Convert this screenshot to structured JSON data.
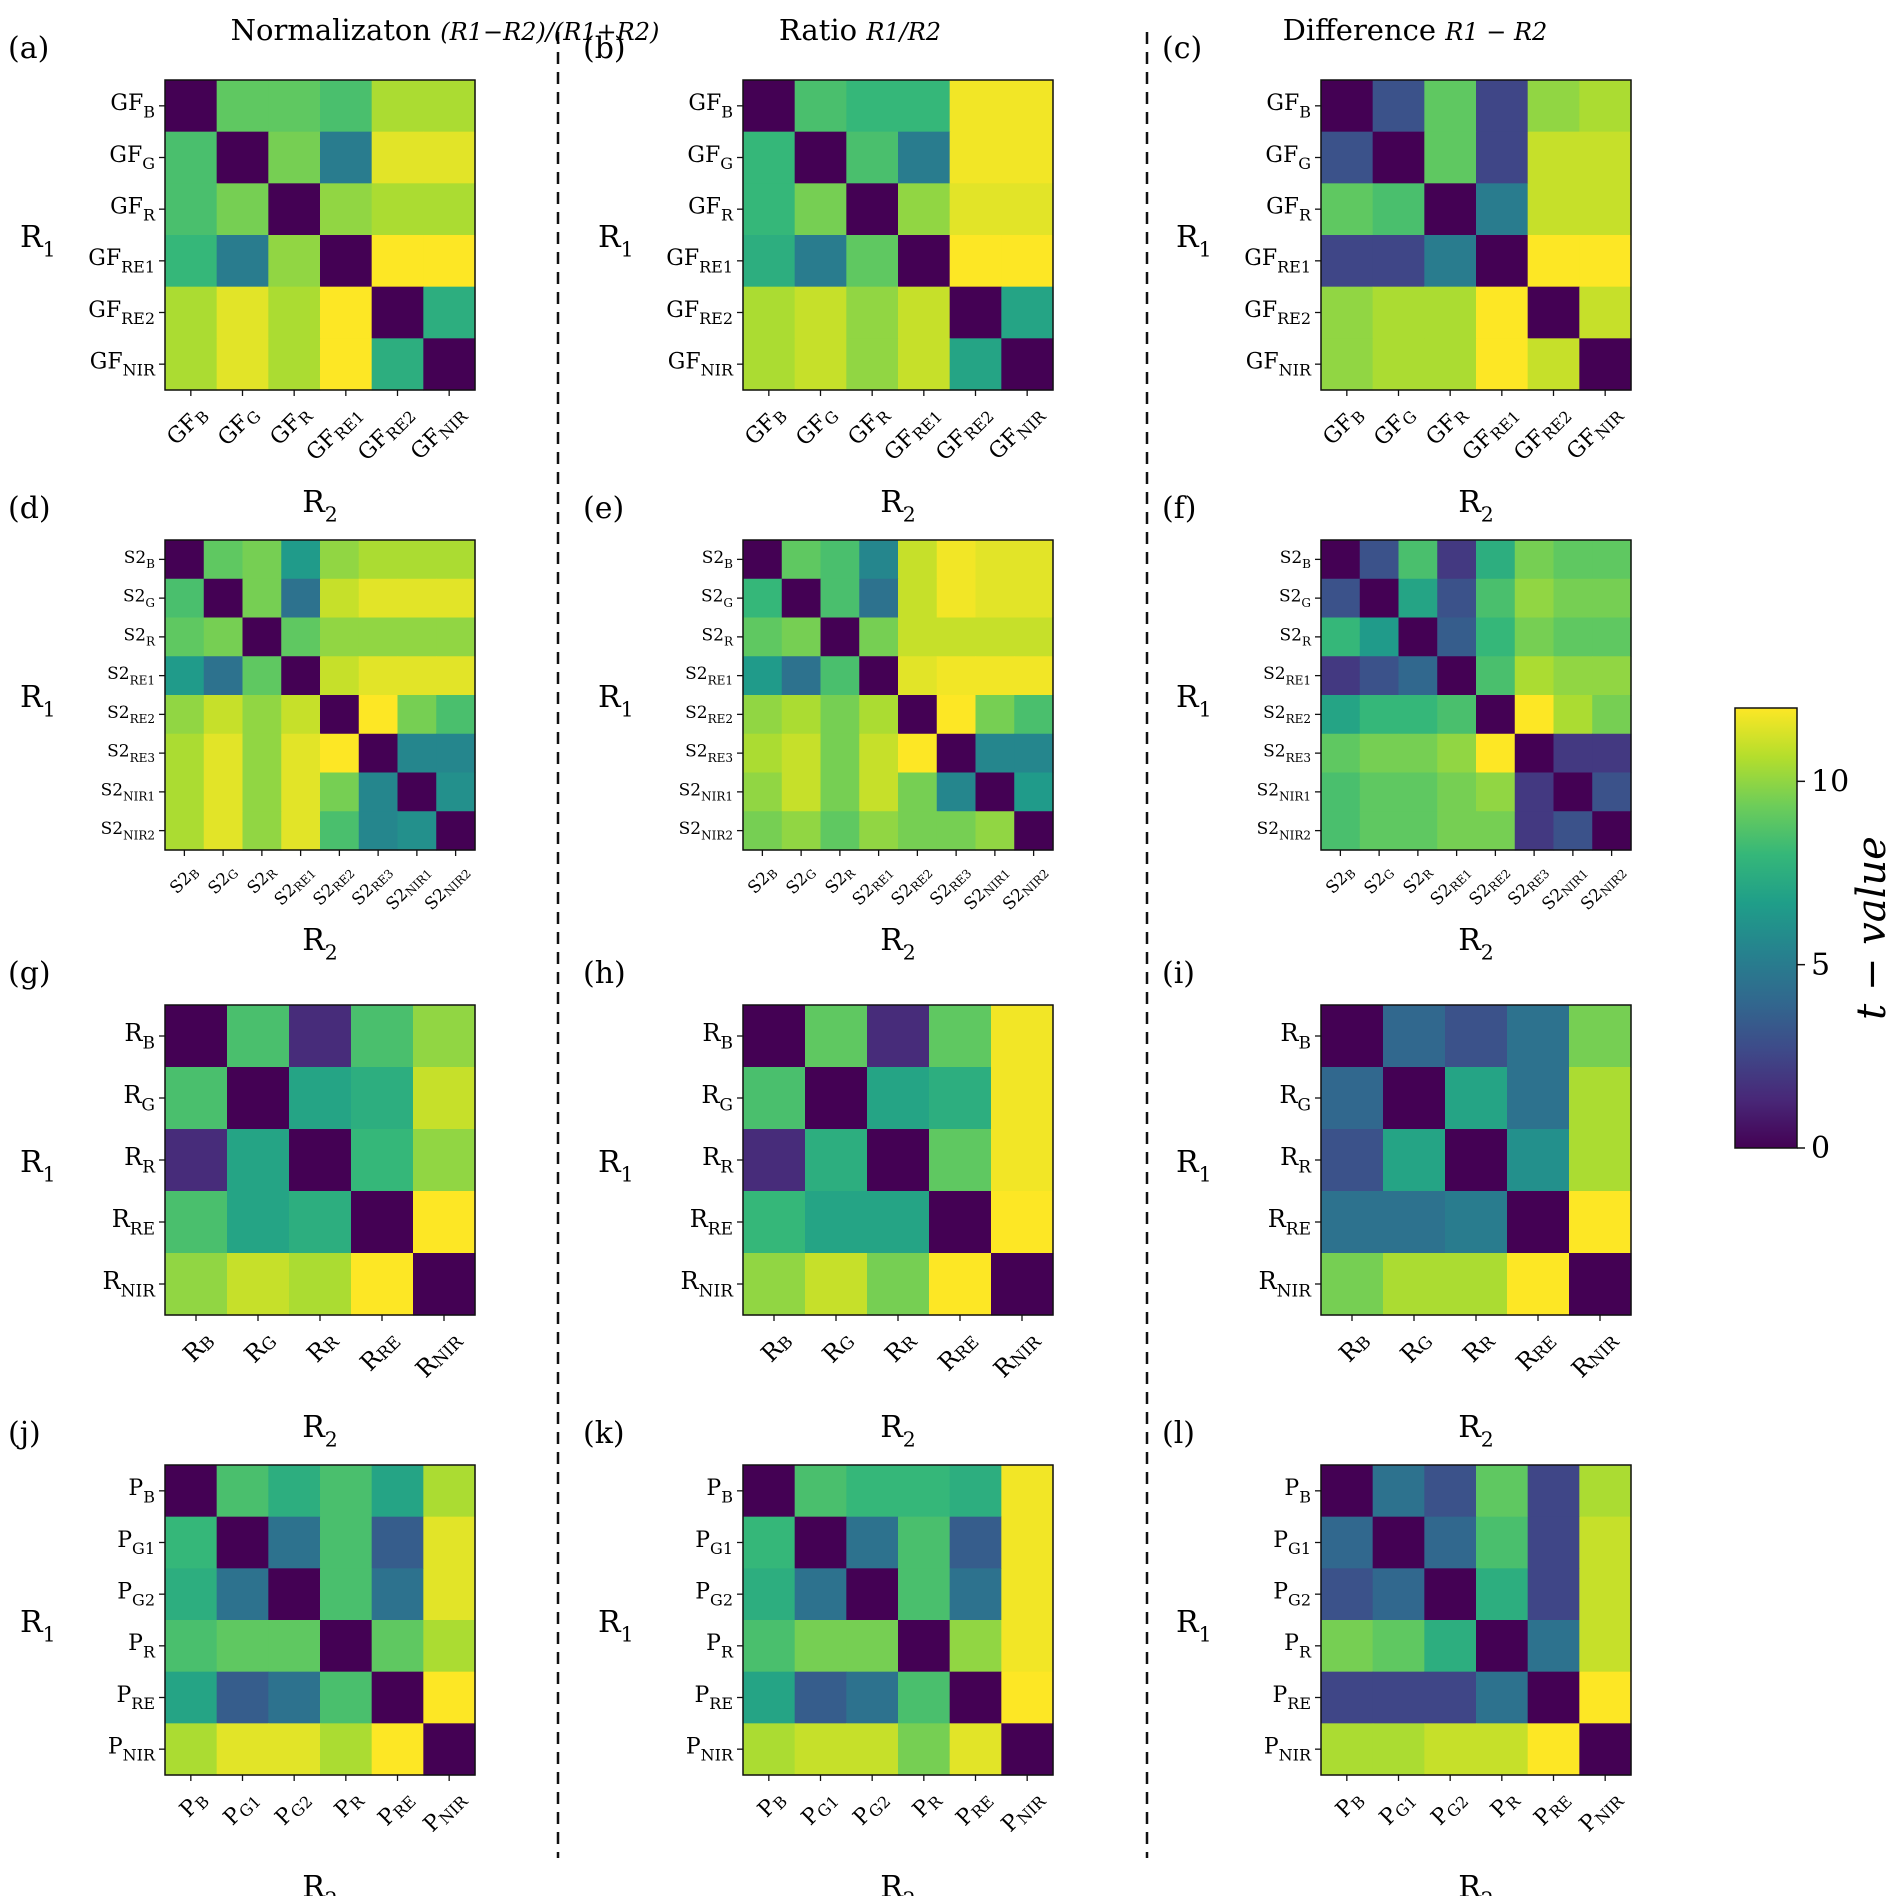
{
  "figure": {
    "column_titles": [
      "Normalizaton",
      "Ratio",
      "Difference"
    ],
    "column_formulas": [
      "(R1−R2)/(R1+R2)",
      "R1/R2",
      "R1 − R2"
    ],
    "row_axis_label": "R1",
    "col_axis_label": "R2",
    "colorbar": {
      "label": "t − value",
      "ticks": [
        0,
        5,
        10
      ],
      "vmin": 0,
      "vmax": 12,
      "colormap": "viridis"
    }
  },
  "chart_data": [
    {
      "type": "heatmap",
      "panel": "(a)",
      "column_title": "Normalizaton",
      "ylabel": "R1",
      "xlabel": "R2",
      "labels": [
        [
          "GF",
          "B"
        ],
        [
          "GF",
          "G"
        ],
        [
          "GF",
          "R"
        ],
        [
          "GF",
          "RE1"
        ],
        [
          "GF",
          "RE2"
        ],
        [
          "GF",
          "NIR"
        ]
      ],
      "values": [
        [
          0,
          9,
          9,
          8.5,
          10.5,
          10.5
        ],
        [
          8.5,
          0,
          9.5,
          5,
          11.5,
          11.5
        ],
        [
          8.5,
          9.5,
          0,
          10,
          10.5,
          10.5
        ],
        [
          8,
          5,
          10,
          0,
          12,
          12
        ],
        [
          10.5,
          11.5,
          10.5,
          12,
          0,
          7.5
        ],
        [
          10.5,
          11.5,
          10.5,
          12,
          7.5,
          0
        ]
      ]
    },
    {
      "type": "heatmap",
      "panel": "(b)",
      "column_title": "Ratio",
      "ylabel": "R1",
      "xlabel": "R2",
      "labels": [
        [
          "GF",
          "B"
        ],
        [
          "GF",
          "G"
        ],
        [
          "GF",
          "R"
        ],
        [
          "GF",
          "RE1"
        ],
        [
          "GF",
          "RE2"
        ],
        [
          "GF",
          "NIR"
        ]
      ],
      "values": [
        [
          0,
          8.5,
          8,
          8,
          11.8,
          11.8
        ],
        [
          8,
          0,
          8.5,
          5,
          11.8,
          11.8
        ],
        [
          8,
          9.5,
          0,
          10,
          11.5,
          11.5
        ],
        [
          7.5,
          5,
          9,
          0,
          12,
          12
        ],
        [
          10.5,
          11,
          10,
          11,
          0,
          7
        ],
        [
          10.5,
          11,
          10,
          11,
          7,
          0
        ]
      ]
    },
    {
      "type": "heatmap",
      "panel": "(c)",
      "column_title": "Difference",
      "ylabel": "R1",
      "xlabel": "R2",
      "labels": [
        [
          "GF",
          "B"
        ],
        [
          "GF",
          "G"
        ],
        [
          "GF",
          "R"
        ],
        [
          "GF",
          "RE1"
        ],
        [
          "GF",
          "RE2"
        ],
        [
          "GF",
          "NIR"
        ]
      ],
      "values": [
        [
          0,
          3,
          9,
          2.5,
          10,
          10.5
        ],
        [
          3,
          0,
          9,
          2.5,
          11,
          11
        ],
        [
          9,
          8.5,
          0,
          5,
          11,
          11
        ],
        [
          2.5,
          2.5,
          5,
          0,
          12,
          12
        ],
        [
          10,
          10.5,
          10.5,
          12,
          0,
          11
        ],
        [
          10,
          10.5,
          10.5,
          12,
          11,
          0
        ]
      ]
    },
    {
      "type": "heatmap",
      "panel": "(d)",
      "column_title": "Normalizaton",
      "ylabel": "R1",
      "xlabel": "R2",
      "labels": [
        [
          "S2",
          "B"
        ],
        [
          "S2",
          "G"
        ],
        [
          "S2",
          "R"
        ],
        [
          "S2",
          "RE1"
        ],
        [
          "S2",
          "RE2"
        ],
        [
          "S2",
          "RE3"
        ],
        [
          "S2",
          "NIR1"
        ],
        [
          "S2",
          "NIR2"
        ]
      ],
      "values": [
        [
          0,
          9,
          9.5,
          6.5,
          10,
          10.5,
          10.5,
          10.5
        ],
        [
          8.5,
          0,
          9.5,
          4.5,
          11,
          11.5,
          11.5,
          11.5
        ],
        [
          9,
          9.5,
          0,
          9,
          10,
          10,
          10,
          10
        ],
        [
          6.5,
          4.5,
          9,
          0,
          11,
          11.5,
          11.5,
          11.5
        ],
        [
          10,
          11,
          10,
          11,
          0,
          12,
          9.5,
          8.5
        ],
        [
          10.5,
          11.5,
          10,
          11.5,
          12,
          0,
          5.5,
          5.5
        ],
        [
          10.5,
          11.5,
          10,
          11.5,
          9.5,
          5.5,
          0,
          6
        ],
        [
          10.5,
          11.5,
          10,
          11.5,
          8.5,
          5.5,
          6,
          0
        ]
      ]
    },
    {
      "type": "heatmap",
      "panel": "(e)",
      "column_title": "Ratio",
      "ylabel": "R1",
      "xlabel": "R2",
      "labels": [
        [
          "S2",
          "B"
        ],
        [
          "S2",
          "G"
        ],
        [
          "S2",
          "R"
        ],
        [
          "S2",
          "RE1"
        ],
        [
          "S2",
          "RE2"
        ],
        [
          "S2",
          "RE3"
        ],
        [
          "S2",
          "NIR1"
        ],
        [
          "S2",
          "NIR2"
        ]
      ],
      "values": [
        [
          0,
          9,
          8.5,
          5.5,
          11,
          11.8,
          11.5,
          11.5
        ],
        [
          8,
          0,
          8.5,
          4.5,
          11,
          11.8,
          11.5,
          11.5
        ],
        [
          9,
          9.5,
          0,
          9.5,
          11,
          11,
          11,
          11
        ],
        [
          6.5,
          4.5,
          8.5,
          0,
          11.5,
          11.8,
          11.8,
          11.8
        ],
        [
          10,
          10.5,
          9.5,
          10.5,
          0,
          12,
          9.5,
          8.5
        ],
        [
          10.5,
          11,
          9.5,
          11,
          12,
          0,
          5.5,
          5.5
        ],
        [
          10,
          11,
          9.5,
          11,
          9.5,
          5.5,
          0,
          6.5
        ],
        [
          9.5,
          10,
          9,
          10,
          9.5,
          9.5,
          10,
          0
        ]
      ]
    },
    {
      "type": "heatmap",
      "panel": "(f)",
      "column_title": "Difference",
      "ylabel": "R1",
      "xlabel": "R2",
      "labels": [
        [
          "S2",
          "B"
        ],
        [
          "S2",
          "G"
        ],
        [
          "S2",
          "R"
        ],
        [
          "S2",
          "RE1"
        ],
        [
          "S2",
          "RE2"
        ],
        [
          "S2",
          "RE3"
        ],
        [
          "S2",
          "NIR1"
        ],
        [
          "S2",
          "NIR2"
        ]
      ],
      "values": [
        [
          0,
          3,
          8.5,
          2,
          7.5,
          9.5,
          9,
          9
        ],
        [
          3,
          0,
          7,
          3,
          8.5,
          10,
          9.5,
          9.5
        ],
        [
          8,
          6.5,
          0,
          3.5,
          8,
          9.5,
          9,
          9
        ],
        [
          2,
          3,
          4,
          0,
          8.5,
          10.5,
          10,
          10
        ],
        [
          7,
          8,
          8,
          8.5,
          0,
          12,
          10.5,
          9.5
        ],
        [
          9,
          9.5,
          9.5,
          10,
          12,
          0,
          2,
          2
        ],
        [
          8.5,
          9,
          9,
          9.5,
          10,
          2,
          0,
          3
        ],
        [
          8.5,
          9,
          9,
          9.5,
          9.5,
          2,
          3,
          0
        ]
      ]
    },
    {
      "type": "heatmap",
      "panel": "(g)",
      "column_title": "Normalizaton",
      "ylabel": "R1",
      "xlabel": "R2",
      "labels": [
        [
          "R",
          "B"
        ],
        [
          "R",
          "G"
        ],
        [
          "R",
          "R"
        ],
        [
          "R",
          "RE"
        ],
        [
          "R",
          "NIR"
        ]
      ],
      "values": [
        [
          0,
          8.5,
          1.5,
          8.5,
          10
        ],
        [
          8.5,
          0,
          7,
          7.5,
          11
        ],
        [
          1.5,
          7,
          0,
          8,
          10
        ],
        [
          8.5,
          7,
          7.5,
          0,
          12
        ],
        [
          10,
          11,
          10.5,
          12,
          0
        ]
      ]
    },
    {
      "type": "heatmap",
      "panel": "(h)",
      "column_title": "Ratio",
      "ylabel": "R1",
      "xlabel": "R2",
      "labels": [
        [
          "R",
          "B"
        ],
        [
          "R",
          "G"
        ],
        [
          "R",
          "R"
        ],
        [
          "R",
          "RE"
        ],
        [
          "R",
          "NIR"
        ]
      ],
      "values": [
        [
          0,
          9,
          1.5,
          9,
          11.8
        ],
        [
          8.5,
          0,
          7,
          7.5,
          11.8
        ],
        [
          1.5,
          7.5,
          0,
          9,
          11.8
        ],
        [
          8,
          7,
          7,
          0,
          12
        ],
        [
          10,
          11,
          9.5,
          12,
          0
        ]
      ]
    },
    {
      "type": "heatmap",
      "panel": "(i)",
      "column_title": "Difference",
      "ylabel": "R1",
      "xlabel": "R2",
      "labels": [
        [
          "R",
          "B"
        ],
        [
          "R",
          "G"
        ],
        [
          "R",
          "R"
        ],
        [
          "R",
          "RE"
        ],
        [
          "R",
          "NIR"
        ]
      ],
      "values": [
        [
          0,
          4,
          3,
          4.5,
          9.5
        ],
        [
          4,
          0,
          7,
          4.5,
          10.5
        ],
        [
          3,
          7,
          0,
          6,
          10.5
        ],
        [
          4.5,
          4.5,
          5,
          0,
          12
        ],
        [
          9.5,
          10.5,
          10.5,
          12,
          0
        ]
      ]
    },
    {
      "type": "heatmap",
      "panel": "(j)",
      "column_title": "Normalizaton",
      "ylabel": "R1",
      "xlabel": "R2",
      "labels": [
        [
          "P",
          "B"
        ],
        [
          "P",
          "G1"
        ],
        [
          "P",
          "G2"
        ],
        [
          "P",
          "R"
        ],
        [
          "P",
          "RE"
        ],
        [
          "P",
          "NIR"
        ]
      ],
      "values": [
        [
          0,
          8.5,
          7.5,
          8.5,
          7,
          10.5
        ],
        [
          8,
          0,
          4.5,
          8.5,
          3.5,
          11.5
        ],
        [
          7.5,
          4.5,
          0,
          8.5,
          4.5,
          11.5
        ],
        [
          8.5,
          9,
          9,
          0,
          9,
          10.5
        ],
        [
          7,
          3.5,
          4.5,
          8.5,
          0,
          12
        ],
        [
          10.5,
          11.5,
          11.5,
          10.5,
          12,
          0
        ]
      ]
    },
    {
      "type": "heatmap",
      "panel": "(k)",
      "column_title": "Ratio",
      "ylabel": "R1",
      "xlabel": "R2",
      "labels": [
        [
          "P",
          "B"
        ],
        [
          "P",
          "G1"
        ],
        [
          "P",
          "G2"
        ],
        [
          "P",
          "R"
        ],
        [
          "P",
          "RE"
        ],
        [
          "P",
          "NIR"
        ]
      ],
      "values": [
        [
          0,
          8.5,
          8,
          8,
          7.5,
          11.8
        ],
        [
          8,
          0,
          4.5,
          8.5,
          3.5,
          11.8
        ],
        [
          7.5,
          4.5,
          0,
          8.5,
          4.5,
          11.8
        ],
        [
          8.5,
          9.5,
          9.5,
          0,
          10,
          11.8
        ],
        [
          7,
          3.5,
          4.5,
          8.5,
          0,
          12
        ],
        [
          10.5,
          11,
          11,
          9.5,
          11.5,
          0
        ]
      ]
    },
    {
      "type": "heatmap",
      "panel": "(l)",
      "column_title": "Difference",
      "ylabel": "R1",
      "xlabel": "R2",
      "labels": [
        [
          "P",
          "B"
        ],
        [
          "P",
          "G1"
        ],
        [
          "P",
          "G2"
        ],
        [
          "P",
          "R"
        ],
        [
          "P",
          "RE"
        ],
        [
          "P",
          "NIR"
        ]
      ],
      "values": [
        [
          0,
          4.5,
          3,
          9,
          2.5,
          10.5
        ],
        [
          4,
          0,
          4,
          8.5,
          2.5,
          11
        ],
        [
          3,
          4,
          0,
          7.5,
          2.5,
          11
        ],
        [
          9.5,
          9,
          7.5,
          0,
          4.5,
          11
        ],
        [
          2.5,
          2.5,
          2.5,
          4.5,
          0,
          12
        ],
        [
          10.5,
          10.5,
          11,
          11,
          12,
          0
        ]
      ]
    }
  ]
}
